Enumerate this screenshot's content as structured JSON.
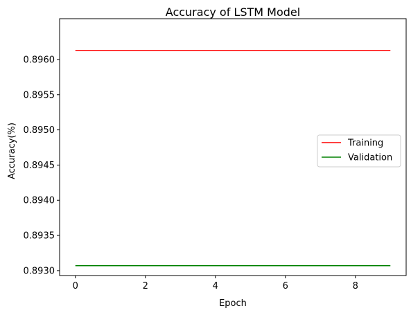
{
  "chart_data": {
    "type": "line",
    "title": "Accuracy of LSTM Model",
    "xlabel": "Epoch",
    "ylabel": "Accuracy(%)",
    "x": [
      0,
      1,
      2,
      3,
      4,
      5,
      6,
      7,
      8,
      9
    ],
    "xlim": [
      -0.45,
      9.45
    ],
    "ylim": [
      0.89293,
      0.89658
    ],
    "x_ticks": [
      0,
      2,
      4,
      6,
      8
    ],
    "x_tick_labels": [
      "0",
      "2",
      "4",
      "6",
      "8"
    ],
    "y_ticks": [
      0.893,
      0.8935,
      0.894,
      0.8945,
      0.895,
      0.8955,
      0.896
    ],
    "y_tick_labels": [
      "0.8930",
      "0.8935",
      "0.8940",
      "0.8945",
      "0.8950",
      "0.8955",
      "0.8960"
    ],
    "grid": false,
    "legend_position": "center-right",
    "series": [
      {
        "name": "Training",
        "color": "#ff0000",
        "values": [
          0.89613,
          0.89613,
          0.89613,
          0.89613,
          0.89613,
          0.89613,
          0.89613,
          0.89613,
          0.89613,
          0.89613
        ]
      },
      {
        "name": "Validation",
        "color": "#008000",
        "values": [
          0.89307,
          0.89307,
          0.89307,
          0.89307,
          0.89307,
          0.89307,
          0.89307,
          0.89307,
          0.89307,
          0.89307
        ]
      }
    ]
  }
}
